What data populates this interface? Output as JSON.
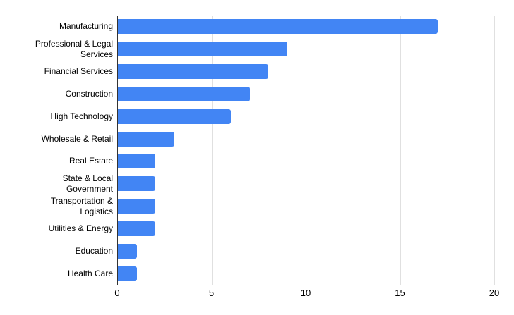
{
  "page": {
    "background": "#ffffff"
  },
  "chart_data": {
    "type": "bar",
    "orientation": "horizontal",
    "title": "",
    "xlabel": "",
    "ylabel": "",
    "categories": [
      "Manufacturing",
      "Professional & Legal Services",
      "Financial Services",
      "Construction",
      "High Technology",
      "Wholesale & Retail",
      "Real Estate",
      "State & Local Government",
      "Transportation & Logistics",
      "Utilities & Energy",
      "Education",
      "Health Care"
    ],
    "values": [
      17,
      9,
      8,
      7,
      6,
      3,
      2,
      2,
      2,
      2,
      1,
      1
    ],
    "xlim": [
      0,
      20
    ],
    "x_ticks": [
      0,
      5,
      10,
      15,
      20
    ],
    "grid": true,
    "legend_position": "none",
    "bar_color": "#4285f4",
    "gridline_color": "#e0e0e0",
    "axis_line_color": "#333333",
    "text_color": "#000000"
  }
}
